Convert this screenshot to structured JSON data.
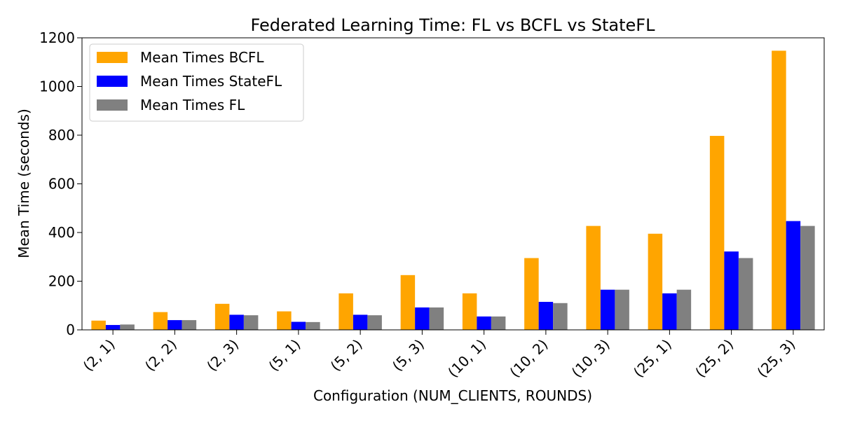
{
  "chart_data": {
    "type": "bar",
    "title": "Federated Learning Time: FL vs BCFL vs StateFL",
    "xlabel": "Configuration (NUM_CLIENTS, ROUNDS)",
    "ylabel": "Mean Time (seconds)",
    "categories": [
      "(2, 1)",
      "(2, 2)",
      "(2, 3)",
      "(5, 1)",
      "(5, 2)",
      "(5, 3)",
      "(10, 1)",
      "(10, 2)",
      "(10, 3)",
      "(25, 1)",
      "(25, 2)",
      "(25, 3)"
    ],
    "ylim": [
      0,
      1200
    ],
    "yticks": [
      0,
      200,
      400,
      600,
      800,
      1000,
      1200
    ],
    "grid": false,
    "legend_position": "top-left",
    "series": [
      {
        "name": "Mean Times BCFL",
        "color": "#ffa500",
        "values": [
          38,
          73,
          107,
          76,
          150,
          225,
          150,
          295,
          427,
          395,
          797,
          1147
        ]
      },
      {
        "name": "Mean Times StateFL",
        "color": "#0000ff",
        "values": [
          20,
          40,
          62,
          33,
          62,
          92,
          55,
          115,
          165,
          150,
          322,
          447
        ]
      },
      {
        "name": "Mean Times FL",
        "color": "#808080",
        "values": [
          22,
          40,
          60,
          32,
          60,
          92,
          55,
          110,
          165,
          165,
          295,
          427
        ]
      }
    ]
  }
}
